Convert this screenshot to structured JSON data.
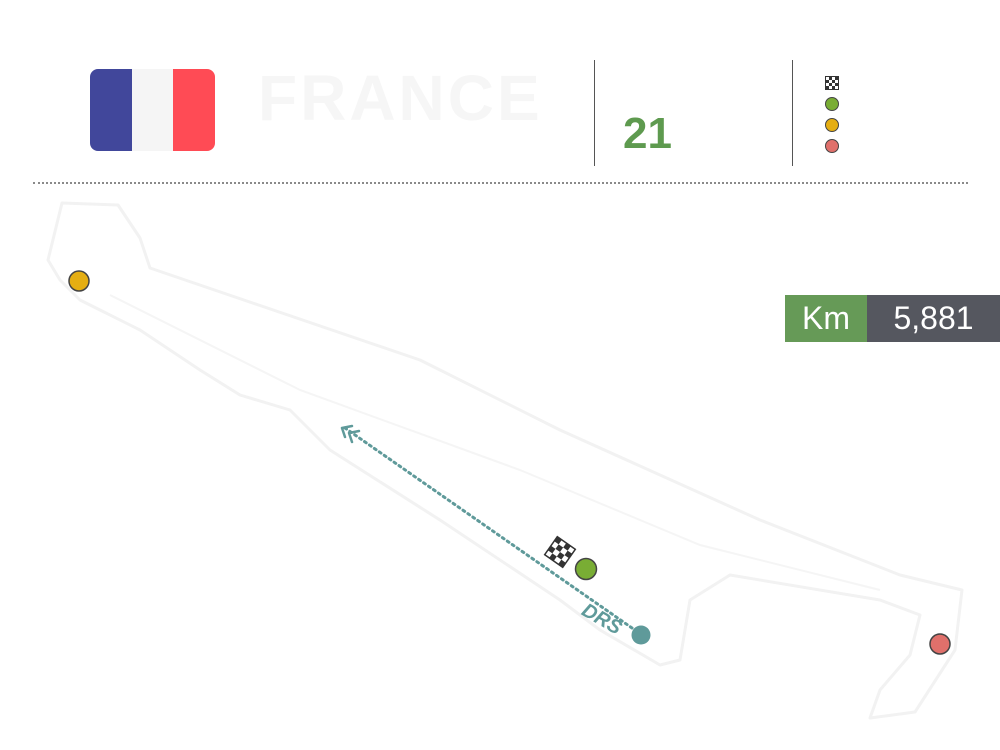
{
  "header": {
    "country": "FRANCE",
    "country_subtitle": "",
    "round_label": "",
    "round_value": "21",
    "round_unit": "",
    "flag_colors": [
      "#41479b",
      "#f5f5f5",
      "#ff4b55"
    ]
  },
  "legend": [
    {
      "icon": "checkered-flag-icon",
      "label": ""
    },
    {
      "icon": "green-dot-icon",
      "color": "#79ad34",
      "label": ""
    },
    {
      "icon": "yellow-dot-icon",
      "color": "#e5ae12",
      "label": ""
    },
    {
      "icon": "red-dot-icon",
      "color": "#e0706b",
      "label": ""
    }
  ],
  "track": {
    "drs_label": "DRS",
    "drs_color": "#5f9a9a",
    "markers": [
      {
        "name": "sector-yellow",
        "color": "#e5ae12"
      },
      {
        "name": "sector-green",
        "color": "#79ad34"
      },
      {
        "name": "sector-red",
        "color": "#e0706b"
      },
      {
        "name": "drs-detection",
        "color": "#5f9a9a"
      }
    ]
  },
  "length": {
    "unit": "Km",
    "value": "5,881"
  }
}
